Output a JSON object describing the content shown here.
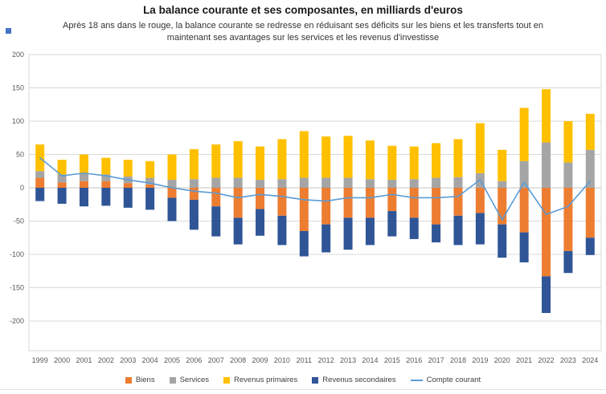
{
  "title": "La balance courante et ses composantes, en milliards d'euros",
  "subtitle": "Après 18 ans dans le rouge, la balance courante se redresse en réduisant ses déficits sur les biens et les transferts tout en maintenant ses avantages sur les services et les revenus d'investisse",
  "chart_data": {
    "type": "bar",
    "subtype": "stacked-bar-with-line",
    "title": "La balance courante et ses composantes, en milliards d'euros",
    "unit": "milliards d'euros",
    "categories": [
      "1999",
      "2000",
      "2001",
      "2002",
      "2003",
      "2004",
      "2005",
      "2006",
      "2007",
      "2008",
      "2009",
      "2010",
      "2011",
      "2012",
      "2013",
      "2014",
      "2015",
      "2016",
      "2017",
      "2018",
      "2019",
      "2020",
      "2021",
      "2022",
      "2023",
      "2024"
    ],
    "series": [
      {
        "name": "Biens",
        "kind": "bar",
        "color": "#ED7D31",
        "values": [
          15,
          8,
          10,
          10,
          7,
          5,
          -15,
          -18,
          -28,
          -45,
          -32,
          -42,
          -65,
          -55,
          -45,
          -45,
          -35,
          -45,
          -55,
          -42,
          -38,
          -55,
          -67,
          -133,
          -95,
          -75
        ]
      },
      {
        "name": "Services",
        "kind": "bar",
        "color": "#A5A5A5",
        "values": [
          10,
          12,
          12,
          10,
          10,
          10,
          12,
          13,
          15,
          15,
          12,
          13,
          15,
          15,
          15,
          13,
          12,
          13,
          15,
          16,
          22,
          10,
          40,
          68,
          38,
          57
        ]
      },
      {
        "name": "Revenus primaires",
        "kind": "bar",
        "color": "#FFC000",
        "values": [
          40,
          22,
          28,
          25,
          25,
          25,
          38,
          45,
          50,
          55,
          50,
          60,
          70,
          62,
          63,
          58,
          51,
          49,
          52,
          57,
          75,
          47,
          80,
          80,
          62,
          54
        ]
      },
      {
        "name": "Revenus secondaires",
        "kind": "bar",
        "color": "#2F5597",
        "values": [
          -20,
          -24,
          -28,
          -27,
          -30,
          -33,
          -35,
          -45,
          -45,
          -40,
          -40,
          -44,
          -38,
          -42,
          -48,
          -41,
          -38,
          -32,
          -27,
          -44,
          -47,
          -50,
          -45,
          -55,
          -33,
          -26
        ]
      },
      {
        "name": "Compte courant",
        "kind": "line",
        "color": "#5B9BD5",
        "values": [
          45,
          18,
          22,
          18,
          12,
          7,
          0,
          -5,
          -8,
          -15,
          -10,
          -13,
          -18,
          -20,
          -15,
          -15,
          -10,
          -15,
          -15,
          -13,
          12,
          -48,
          8,
          -40,
          -28,
          10
        ]
      }
    ],
    "ylim": [
      -200,
      200
    ],
    "ytick_step": 50,
    "yticks": [
      200,
      150,
      100,
      50,
      0,
      -50,
      -100,
      -150,
      -200
    ],
    "grid": true,
    "legend_position": "bottom"
  }
}
